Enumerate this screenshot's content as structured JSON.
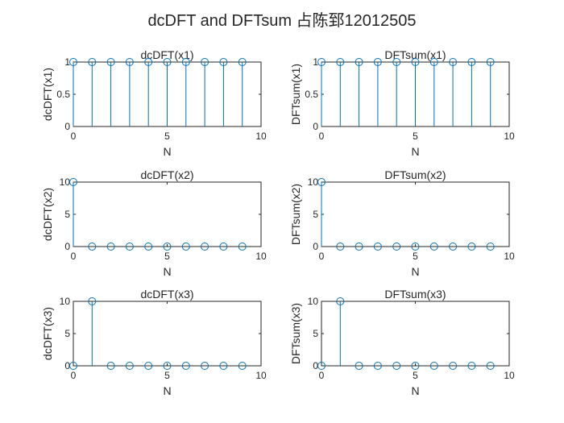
{
  "figure": {
    "title": "dcDFT and DFTsum 占陈郅12012505",
    "stem_color": "#0072BD",
    "axis_color": "#262626",
    "background": "#FFFFFF"
  },
  "chart_data": [
    {
      "type": "stem",
      "title": "dcDFT(x1)",
      "xlabel": "N",
      "ylabel": "dcDFT(x1)",
      "xlim": [
        0,
        10
      ],
      "ylim": [
        0,
        1
      ],
      "xticks": [
        0,
        5,
        10
      ],
      "yticks": [
        0,
        0.5,
        1
      ],
      "x": [
        0,
        1,
        2,
        3,
        4,
        5,
        6,
        7,
        8,
        9
      ],
      "y": [
        1,
        1,
        1,
        1,
        1,
        1,
        1,
        1,
        1,
        1
      ]
    },
    {
      "type": "stem",
      "title": "DFTsum(x1)",
      "xlabel": "N",
      "ylabel": "DFTsum(x1)",
      "xlim": [
        0,
        10
      ],
      "ylim": [
        0,
        1
      ],
      "xticks": [
        0,
        5,
        10
      ],
      "yticks": [
        0,
        0.5,
        1
      ],
      "x": [
        0,
        1,
        2,
        3,
        4,
        5,
        6,
        7,
        8,
        9
      ],
      "y": [
        1,
        1,
        1,
        1,
        1,
        1,
        1,
        1,
        1,
        1
      ]
    },
    {
      "type": "stem",
      "title": "dcDFT(x2)",
      "xlabel": "N",
      "ylabel": "dcDFT(x2)",
      "xlim": [
        0,
        10
      ],
      "ylim": [
        0,
        10
      ],
      "xticks": [
        0,
        5,
        10
      ],
      "yticks": [
        0,
        5,
        10
      ],
      "x": [
        0,
        1,
        2,
        3,
        4,
        5,
        6,
        7,
        8,
        9
      ],
      "y": [
        10,
        0,
        0,
        0,
        0,
        0,
        0,
        0,
        0,
        0
      ]
    },
    {
      "type": "stem",
      "title": "DFTsum(x2)",
      "xlabel": "N",
      "ylabel": "DFTsum(x2)",
      "xlim": [
        0,
        10
      ],
      "ylim": [
        0,
        10
      ],
      "xticks": [
        0,
        5,
        10
      ],
      "yticks": [
        0,
        5,
        10
      ],
      "x": [
        0,
        1,
        2,
        3,
        4,
        5,
        6,
        7,
        8,
        9
      ],
      "y": [
        10,
        0,
        0,
        0,
        0,
        0,
        0,
        0,
        0,
        0
      ]
    },
    {
      "type": "stem",
      "title": "dcDFT(x3)",
      "xlabel": "N",
      "ylabel": "dcDFT(x3)",
      "xlim": [
        0,
        10
      ],
      "ylim": [
        0,
        10
      ],
      "xticks": [
        0,
        5,
        10
      ],
      "yticks": [
        0,
        5,
        10
      ],
      "x": [
        0,
        1,
        2,
        3,
        4,
        5,
        6,
        7,
        8,
        9
      ],
      "y": [
        0,
        10,
        0,
        0,
        0,
        0,
        0,
        0,
        0,
        0
      ]
    },
    {
      "type": "stem",
      "title": "DFTsum(x3)",
      "xlabel": "N",
      "ylabel": "DFTsum(x3)",
      "xlim": [
        0,
        10
      ],
      "ylim": [
        0,
        10
      ],
      "xticks": [
        0,
        5,
        10
      ],
      "yticks": [
        0,
        5,
        10
      ],
      "x": [
        0,
        1,
        2,
        3,
        4,
        5,
        6,
        7,
        8,
        9
      ],
      "y": [
        0,
        10,
        0,
        0,
        0,
        0,
        0,
        0,
        0,
        0
      ]
    }
  ]
}
